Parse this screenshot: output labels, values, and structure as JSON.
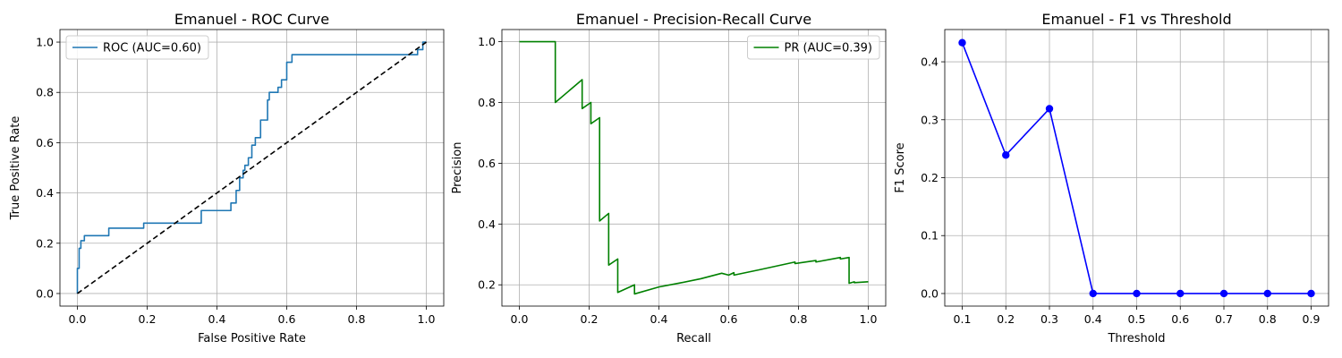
{
  "chart_data": [
    {
      "type": "line",
      "title": "Emanuel - ROC Curve",
      "xlabel": "False Positive Rate",
      "ylabel": "True Positive Rate",
      "xlim": [
        -0.05,
        1.05
      ],
      "ylim": [
        -0.05,
        1.05
      ],
      "xticks": [
        "0.0",
        "0.2",
        "0.4",
        "0.6",
        "0.8",
        "1.0"
      ],
      "yticks": [
        "0.0",
        "0.2",
        "0.4",
        "0.6",
        "0.8",
        "1.0"
      ],
      "grid": true,
      "legend": "upper left",
      "series": [
        {
          "name": "ROC (AUC=0.60)",
          "color": "#1f77b4",
          "style": "solid",
          "x": [
            0,
            0,
            0.005,
            0.005,
            0.01,
            0.01,
            0.02,
            0.02,
            0.09,
            0.09,
            0.19,
            0.19,
            0.355,
            0.355,
            0.44,
            0.44,
            0.455,
            0.455,
            0.465,
            0.465,
            0.475,
            0.475,
            0.48,
            0.48,
            0.49,
            0.49,
            0.5,
            0.5,
            0.51,
            0.51,
            0.525,
            0.525,
            0.545,
            0.545,
            0.55,
            0.55,
            0.575,
            0.575,
            0.585,
            0.585,
            0.6,
            0.6,
            0.615,
            0.615,
            0.975,
            0.975,
            0.99,
            0.99,
            1.0
          ],
          "y": [
            0,
            0.1,
            0.1,
            0.18,
            0.18,
            0.21,
            0.21,
            0.23,
            0.23,
            0.26,
            0.26,
            0.28,
            0.28,
            0.33,
            0.33,
            0.36,
            0.36,
            0.41,
            0.41,
            0.46,
            0.46,
            0.49,
            0.49,
            0.51,
            0.51,
            0.54,
            0.54,
            0.59,
            0.59,
            0.62,
            0.62,
            0.69,
            0.69,
            0.77,
            0.77,
            0.8,
            0.8,
            0.82,
            0.82,
            0.85,
            0.85,
            0.92,
            0.92,
            0.95,
            0.95,
            0.97,
            0.97,
            1.0,
            1.0
          ]
        },
        {
          "name": "",
          "color": "#000000",
          "style": "dashed",
          "x": [
            0,
            1
          ],
          "y": [
            0,
            1
          ]
        }
      ]
    },
    {
      "type": "line",
      "title": "Emanuel - Precision-Recall Curve",
      "xlabel": "Recall",
      "ylabel": "Precision",
      "xlim": [
        -0.05,
        1.05
      ],
      "ylim": [
        0.13,
        1.04
      ],
      "xticks": [
        "0.0",
        "0.2",
        "0.4",
        "0.6",
        "0.8",
        "1.0"
      ],
      "yticks": [
        "0.2",
        "0.4",
        "0.6",
        "0.8",
        "1.0"
      ],
      "grid": true,
      "legend": "upper right",
      "series": [
        {
          "name": "PR (AUC=0.39)",
          "color": "#008000",
          "style": "solid",
          "x": [
            0,
            0.103,
            0.103,
            0.18,
            0.18,
            0.205,
            0.205,
            0.23,
            0.23,
            0.256,
            0.256,
            0.282,
            0.282,
            0.33,
            0.33,
            0.4,
            0.46,
            0.52,
            0.58,
            0.6,
            0.615,
            0.615,
            0.69,
            0.79,
            0.79,
            0.85,
            0.85,
            0.92,
            0.92,
            0.945,
            0.945,
            0.96,
            0.96,
            1.0
          ],
          "y": [
            1.0,
            1.0,
            0.8,
            0.875,
            0.78,
            0.8,
            0.73,
            0.75,
            0.41,
            0.435,
            0.265,
            0.285,
            0.175,
            0.2,
            0.17,
            0.193,
            0.206,
            0.22,
            0.238,
            0.232,
            0.24,
            0.232,
            0.25,
            0.275,
            0.27,
            0.28,
            0.275,
            0.29,
            0.285,
            0.29,
            0.205,
            0.21,
            0.207,
            0.21
          ]
        }
      ]
    },
    {
      "type": "line",
      "title": "Emanuel - F1 vs Threshold",
      "xlabel": "Threshold",
      "ylabel": "F1 Score",
      "xlim": [
        0.06,
        0.94
      ],
      "ylim": [
        -0.0217,
        0.4557
      ],
      "xticks": [
        "0.1",
        "0.2",
        "0.3",
        "0.4",
        "0.5",
        "0.6",
        "0.7",
        "0.8",
        "0.9"
      ],
      "yticks": [
        "0.0",
        "0.1",
        "0.2",
        "0.3",
        "0.4"
      ],
      "grid": true,
      "legend": "none",
      "series": [
        {
          "name": "",
          "color": "#0000ff",
          "style": "solid-markers",
          "x": [
            0.1,
            0.2,
            0.3,
            0.4,
            0.5,
            0.6,
            0.7,
            0.8,
            0.9
          ],
          "y": [
            0.433,
            0.239,
            0.319,
            0.0,
            0.0,
            0.0,
            0.0,
            0.0,
            0.0
          ]
        }
      ]
    }
  ]
}
